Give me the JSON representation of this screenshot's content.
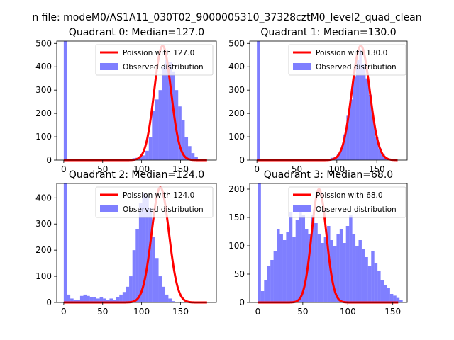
{
  "suptitle": "n file: modeM0/AS1A11_030T02_9000005310_37328cztM0_level2_quad_clean",
  "colors": {
    "hist": "#0000ff",
    "poisson": "#ff0000"
  },
  "chart_data": [
    {
      "type": "bar",
      "title": "Quadrant 0: Median=127.0",
      "xlim": [
        -9,
        196
      ],
      "ylim": [
        0,
        510
      ],
      "xticks": [
        0,
        50,
        100,
        150
      ],
      "yticks": [
        0,
        100,
        200,
        300,
        400,
        500
      ],
      "bin_start": 0,
      "bin_width": 4.2,
      "counts": [
        510,
        0,
        0,
        0,
        0,
        0,
        0,
        0,
        0,
        0,
        0,
        0,
        0,
        0,
        0,
        0,
        0,
        0,
        0,
        0,
        5,
        8,
        10,
        15,
        20,
        40,
        100,
        210,
        260,
        300,
        400,
        430,
        420,
        380,
        300,
        230,
        170,
        100,
        60,
        30,
        15,
        5,
        0,
        0,
        0,
        0
      ],
      "poisson_label": "Poission with 127.0",
      "hist_label": "Observed distribution",
      "poisson_peak": 490,
      "poisson_mean": 127.0,
      "poisson_sigma": 10.8,
      "poisson_xmax": 184
    },
    {
      "type": "bar",
      "title": "Quadrant 1: Median=130.0",
      "xlim": [
        -9,
        188
      ],
      "ylim": [
        0,
        510
      ],
      "xticks": [
        0,
        50,
        100,
        150
      ],
      "yticks": [
        0,
        100,
        200,
        300,
        400,
        500
      ],
      "bin_start": 0,
      "bin_width": 4.0,
      "counts": [
        510,
        0,
        0,
        0,
        0,
        0,
        0,
        0,
        0,
        0,
        0,
        0,
        0,
        0,
        0,
        0,
        0,
        0,
        0,
        0,
        0,
        0,
        5,
        10,
        15,
        25,
        50,
        110,
        190,
        260,
        360,
        430,
        470,
        410,
        350,
        280,
        180,
        100,
        50,
        25,
        10,
        0,
        0,
        0,
        0,
        0
      ],
      "poisson_label": "Poission with 130.0",
      "hist_label": "Observed distribution",
      "poisson_peak": 490,
      "poisson_mean": 130.0,
      "poisson_sigma": 11.2,
      "poisson_xmax": 176
    },
    {
      "type": "bar",
      "title": "Quadrant 2: Median=124.0",
      "xlim": [
        -9,
        196
      ],
      "ylim": [
        0,
        455
      ],
      "xticks": [
        0,
        50,
        100,
        150
      ],
      "yticks": [
        0,
        100,
        200,
        300,
        400
      ],
      "bin_start": 0,
      "bin_width": 4.2,
      "counts": [
        455,
        30,
        15,
        10,
        10,
        25,
        30,
        25,
        20,
        20,
        15,
        20,
        15,
        10,
        15,
        10,
        20,
        30,
        40,
        60,
        100,
        200,
        280,
        380,
        420,
        410,
        360,
        250,
        170,
        100,
        60,
        30,
        15,
        5,
        0,
        0,
        0,
        0,
        0,
        0,
        0,
        0,
        0,
        0,
        0,
        0
      ],
      "poisson_label": "Poission with 124.0",
      "hist_label": "Observed distribution",
      "poisson_peak": 440,
      "poisson_mean": 124.0,
      "poisson_sigma": 11.1,
      "poisson_xmax": 184
    },
    {
      "type": "bar",
      "title": "Quadrant 3: Median=68.0",
      "xlim": [
        -9,
        166
      ],
      "ylim": [
        0,
        210
      ],
      "xticks": [
        0,
        50,
        100,
        150
      ],
      "yticks": [
        0,
        50,
        100,
        150,
        200
      ],
      "bin_start": 0,
      "bin_width": 3.5,
      "counts": [
        210,
        20,
        40,
        65,
        75,
        90,
        130,
        120,
        110,
        125,
        160,
        115,
        145,
        160,
        155,
        130,
        120,
        155,
        140,
        120,
        105,
        115,
        135,
        110,
        100,
        120,
        130,
        105,
        135,
        155,
        120,
        100,
        110,
        95,
        80,
        65,
        90,
        70,
        55,
        40,
        30,
        25,
        15,
        12,
        8,
        5
      ],
      "poisson_label": "Poission with 68.0",
      "hist_label": "Observed distribution",
      "poisson_peak": 200,
      "poisson_mean": 68.0,
      "poisson_sigma": 8.2,
      "poisson_xmax": 156
    }
  ]
}
